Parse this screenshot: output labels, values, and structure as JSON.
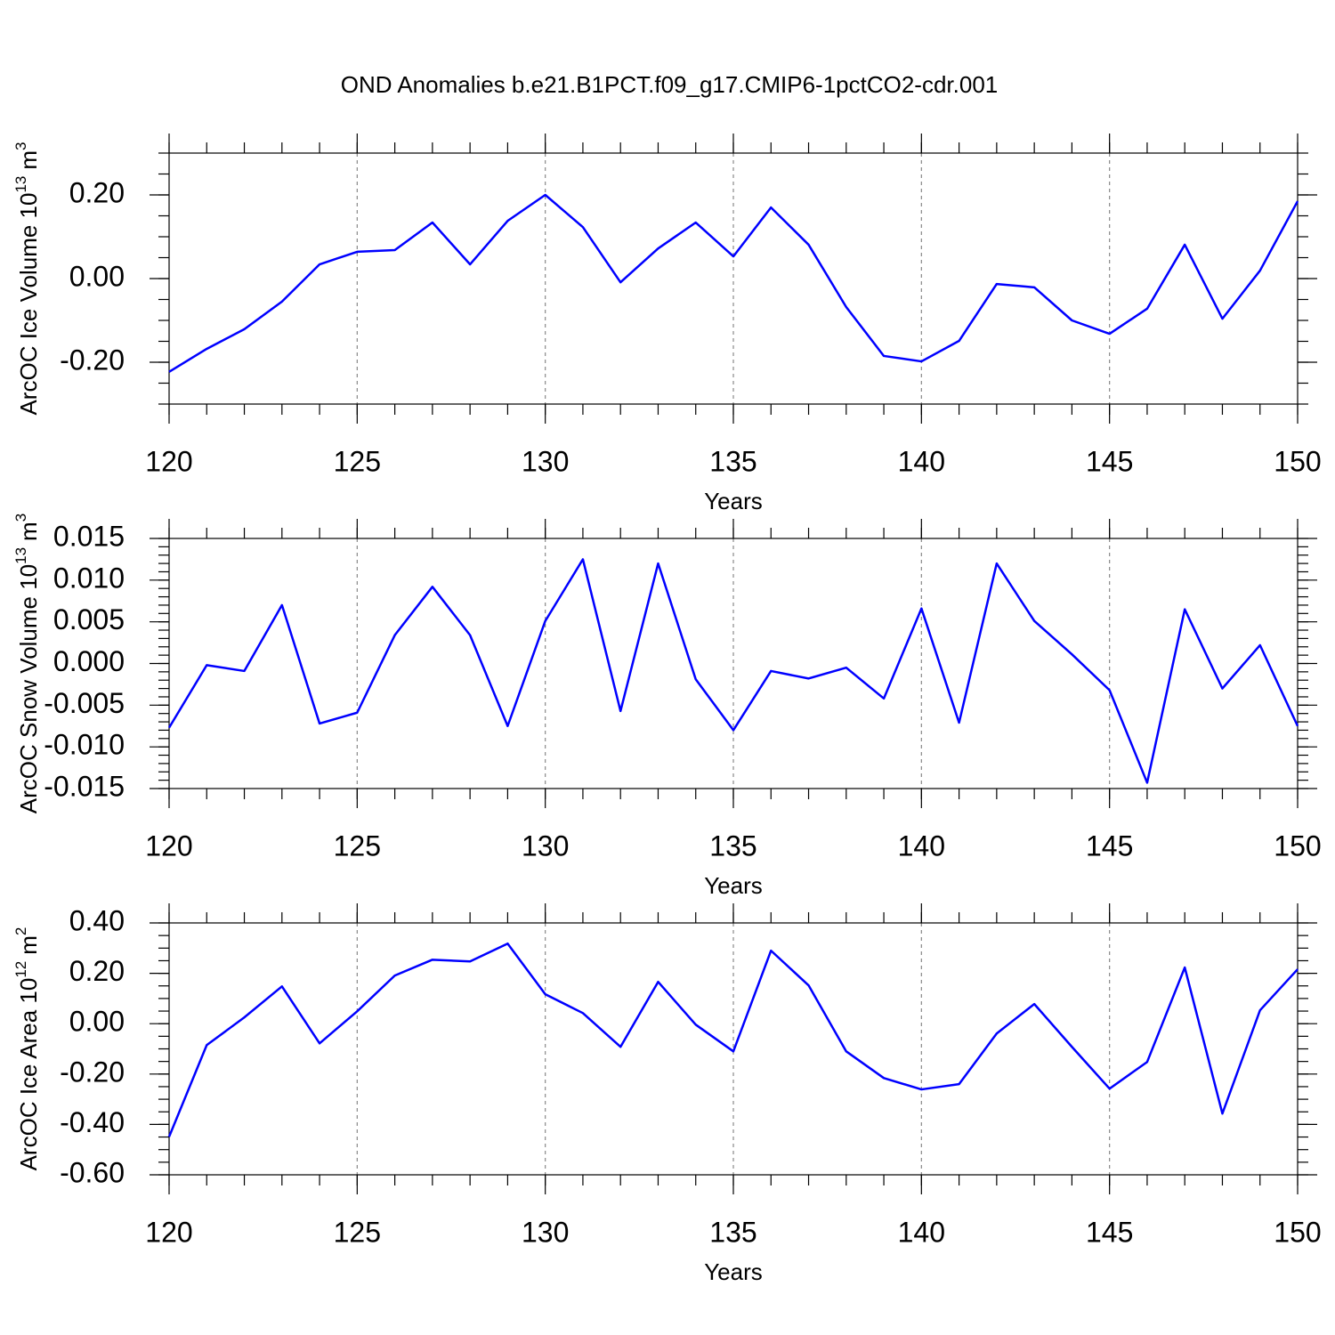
{
  "title": "OND Anomalies b.e21.B1PCT.f09_g17.CMIP6-1pctCO2-cdr.001",
  "chart_data": [
    {
      "type": "line",
      "xlabel": "Years",
      "ylabel": [
        "ArcOC Ice Volume 10",
        "13",
        "m",
        "3"
      ],
      "x": [
        120,
        121,
        122,
        123,
        124,
        125,
        126,
        127,
        128,
        129,
        130,
        131,
        132,
        133,
        134,
        135,
        136,
        137,
        138,
        139,
        140,
        141,
        142,
        143,
        144,
        145,
        146,
        147,
        148,
        149,
        150
      ],
      "values": [
        -0.223,
        -0.168,
        -0.121,
        -0.055,
        0.034,
        0.064,
        0.068,
        0.134,
        0.034,
        0.138,
        0.2,
        0.123,
        -0.009,
        0.072,
        0.134,
        0.053,
        0.17,
        0.081,
        -0.068,
        -0.185,
        -0.198,
        -0.149,
        -0.013,
        -0.021,
        -0.1,
        -0.132,
        -0.072,
        0.081,
        -0.096,
        0.019,
        0.185
      ],
      "color": "#0000ff",
      "grid": true,
      "xlim": [
        120,
        150
      ],
      "xticks": [
        120,
        125,
        130,
        135,
        140,
        145,
        150
      ],
      "xminorticks": [
        120,
        121,
        122,
        123,
        124,
        125,
        126,
        127,
        128,
        129,
        130,
        131,
        132,
        133,
        134,
        135,
        136,
        137,
        138,
        139,
        140,
        141,
        142,
        143,
        144,
        145,
        146,
        147,
        148,
        149,
        150
      ],
      "ylim": [
        -0.3,
        0.3
      ],
      "yticks": [
        {
          "value": -0.2,
          "label": "-0.20"
        },
        {
          "value": 0,
          "label": "0.00"
        },
        {
          "value": 0.2,
          "label": "0.20"
        }
      ],
      "yminorticks": [
        -0.3,
        -0.25,
        -0.2,
        -0.15,
        -0.1,
        -0.05,
        0,
        0.05,
        0.1,
        0.15,
        0.2,
        0.25,
        0.3
      ]
    },
    {
      "type": "line",
      "xlabel": "Years",
      "ylabel": [
        "ArcOC Snow Volume 10",
        "13",
        "m",
        "3"
      ],
      "x": [
        120,
        121,
        122,
        123,
        124,
        125,
        126,
        127,
        128,
        129,
        130,
        131,
        132,
        133,
        134,
        135,
        136,
        137,
        138,
        139,
        140,
        141,
        142,
        143,
        144,
        145,
        146,
        147,
        148,
        149,
        150
      ],
      "values": [
        -0.0077,
        -0.0002,
        -0.0009,
        0.007,
        -0.0072,
        -0.0059,
        0.0034,
        0.0092,
        0.0034,
        -0.0075,
        0.0051,
        0.0125,
        -0.0057,
        0.012,
        -0.0019,
        -0.008,
        -0.0009,
        -0.0018,
        -0.0005,
        -0.0042,
        0.0066,
        -0.0071,
        0.012,
        0.0051,
        0.0011,
        -0.0032,
        -0.0143,
        0.0065,
        -0.003,
        0.0022,
        -0.0075
      ],
      "color": "#0000ff",
      "grid": true,
      "xlim": [
        120,
        150
      ],
      "xticks": [
        120,
        125,
        130,
        135,
        140,
        145,
        150
      ],
      "xminorticks": [
        120,
        121,
        122,
        123,
        124,
        125,
        126,
        127,
        128,
        129,
        130,
        131,
        132,
        133,
        134,
        135,
        136,
        137,
        138,
        139,
        140,
        141,
        142,
        143,
        144,
        145,
        146,
        147,
        148,
        149,
        150
      ],
      "ylim": [
        -0.015,
        0.015
      ],
      "yticks": [
        {
          "value": -0.015,
          "label": "-0.015"
        },
        {
          "value": -0.01,
          "label": "-0.010"
        },
        {
          "value": -0.005,
          "label": "-0.005"
        },
        {
          "value": 0,
          "label": "0.000"
        },
        {
          "value": 0.005,
          "label": "0.005"
        },
        {
          "value": 0.01,
          "label": "0.010"
        },
        {
          "value": 0.015,
          "label": "0.015"
        }
      ],
      "yminorticks": [
        -0.015,
        -0.014,
        -0.013,
        -0.012,
        -0.011,
        -0.01,
        -0.009,
        -0.008,
        -0.007,
        -0.006,
        -0.005,
        -0.004,
        -0.003,
        -0.002,
        -0.001,
        0,
        0.001,
        0.002,
        0.003,
        0.004,
        0.005,
        0.006,
        0.007,
        0.008,
        0.009,
        0.01,
        0.011,
        0.012,
        0.013,
        0.014,
        0.015
      ]
    },
    {
      "type": "line",
      "xlabel": "Years",
      "ylabel": [
        "ArcOC Ice Area 10",
        "12",
        "m",
        "2"
      ],
      "x": [
        120,
        121,
        122,
        123,
        124,
        125,
        126,
        127,
        128,
        129,
        130,
        131,
        132,
        133,
        134,
        135,
        136,
        137,
        138,
        139,
        140,
        141,
        142,
        143,
        144,
        145,
        146,
        147,
        148,
        149,
        150
      ],
      "values": [
        -0.449,
        -0.085,
        0.025,
        0.148,
        -0.078,
        0.049,
        0.191,
        0.254,
        0.247,
        0.318,
        0.117,
        0.042,
        -0.092,
        0.166,
        -0.004,
        -0.11,
        0.29,
        0.152,
        -0.11,
        -0.216,
        -0.261,
        -0.24,
        -0.039,
        0.078,
        -0.092,
        -0.258,
        -0.152,
        0.223,
        -0.357,
        0.053,
        0.216
      ],
      "color": "#0000ff",
      "grid": true,
      "xlim": [
        120,
        150
      ],
      "xticks": [
        120,
        125,
        130,
        135,
        140,
        145,
        150
      ],
      "xminorticks": [
        120,
        121,
        122,
        123,
        124,
        125,
        126,
        127,
        128,
        129,
        130,
        131,
        132,
        133,
        134,
        135,
        136,
        137,
        138,
        139,
        140,
        141,
        142,
        143,
        144,
        145,
        146,
        147,
        148,
        149,
        150
      ],
      "ylim": [
        -0.6,
        0.4
      ],
      "yticks": [
        {
          "value": -0.6,
          "label": "-0.60"
        },
        {
          "value": -0.4,
          "label": "-0.40"
        },
        {
          "value": -0.2,
          "label": "-0.20"
        },
        {
          "value": 0,
          "label": "0.00"
        },
        {
          "value": 0.2,
          "label": "0.20"
        },
        {
          "value": 0.4,
          "label": "0.40"
        }
      ],
      "yminorticks": [
        -0.6,
        -0.55,
        -0.5,
        -0.45,
        -0.4,
        -0.35,
        -0.3,
        -0.25,
        -0.2,
        -0.15,
        -0.1,
        -0.05,
        0,
        0.05,
        0.1,
        0.15,
        0.2,
        0.25,
        0.3,
        0.35,
        0.4
      ]
    }
  ]
}
